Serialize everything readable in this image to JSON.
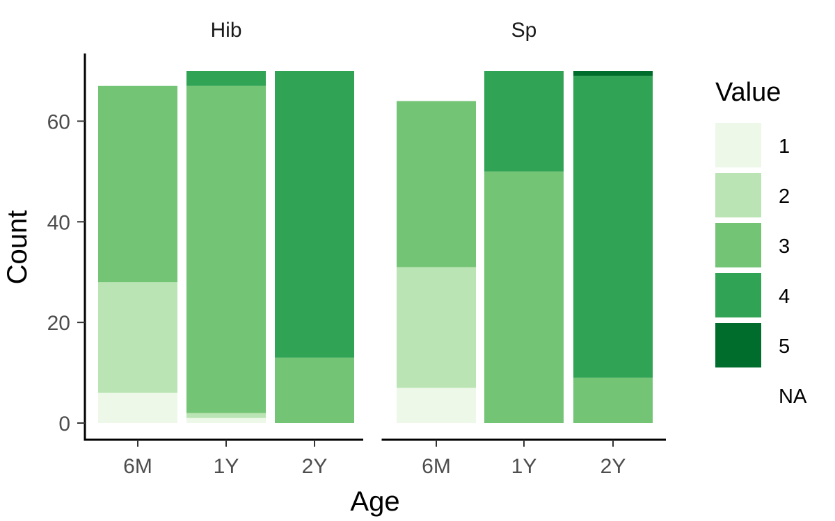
{
  "chart_data": {
    "type": "bar",
    "stacked": true,
    "xlabel": "Age",
    "ylabel": "Count",
    "ylim": [
      0,
      70
    ],
    "yticks": [
      0,
      20,
      40,
      60
    ],
    "categories": [
      "6M",
      "1Y",
      "2Y"
    ],
    "legend": {
      "title": "Value",
      "position": "right",
      "entries": [
        "1",
        "2",
        "3",
        "4",
        "5",
        "NA"
      ],
      "colors": [
        "#edf8e9",
        "#bae4b3",
        "#74c476",
        "#31a354",
        "#006d2c",
        ""
      ]
    },
    "panels": [
      {
        "name": "Hib",
        "series": [
          {
            "name": "1",
            "values": [
              6,
              1,
              0
            ]
          },
          {
            "name": "2",
            "values": [
              22,
              1,
              0
            ]
          },
          {
            "name": "3",
            "values": [
              39,
              65,
              13
            ]
          },
          {
            "name": "4",
            "values": [
              0,
              3,
              57
            ]
          },
          {
            "name": "5",
            "values": [
              0,
              0,
              0
            ]
          }
        ]
      },
      {
        "name": "Sp",
        "series": [
          {
            "name": "1",
            "values": [
              7,
              0,
              0
            ]
          },
          {
            "name": "2",
            "values": [
              24,
              0,
              0
            ]
          },
          {
            "name": "3",
            "values": [
              33,
              50,
              9
            ]
          },
          {
            "name": "4",
            "values": [
              0,
              20,
              60
            ]
          },
          {
            "name": "5",
            "values": [
              0,
              0,
              1
            ]
          }
        ]
      }
    ],
    "grid": false
  }
}
